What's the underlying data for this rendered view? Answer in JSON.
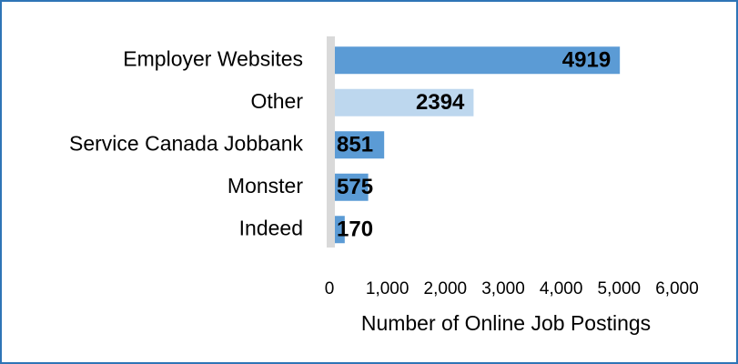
{
  "chart_data": {
    "type": "bar",
    "orientation": "horizontal",
    "categories": [
      "Employer Websites",
      "Other",
      "Service Canada Jobbank",
      "Monster",
      "Indeed"
    ],
    "values": [
      4919,
      2394,
      851,
      575,
      170
    ],
    "colors": [
      "#5b9bd5",
      "#bdd7ee",
      "#5b9bd5",
      "#5b9bd5",
      "#5b9bd5"
    ],
    "x_label": "Number of Online Job Postings",
    "xlim": [
      0,
      6000
    ],
    "xticks": [
      0,
      {
        "value": 1000,
        "label": "1,000"
      },
      {
        "value": 2000,
        "label": "2,000"
      },
      {
        "value": 3000,
        "label": "3,000"
      },
      {
        "value": 4000,
        "label": "4,000"
      },
      {
        "value": 5000,
        "label": "5,000"
      },
      {
        "value": 6000,
        "label": "6,000"
      }
    ],
    "grid": false
  }
}
